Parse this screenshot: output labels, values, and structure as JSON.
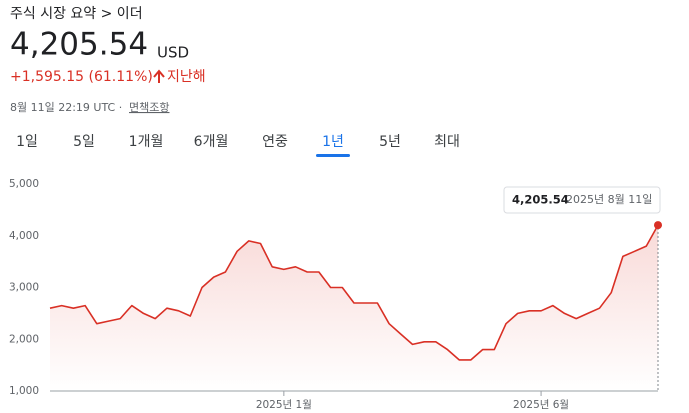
{
  "header": {
    "breadcrumb": "주식 시장 요약 > 이더",
    "price": "4,205.54",
    "currency": "USD",
    "change": "+1,595.15 (61.11%)",
    "period": "지난해",
    "timestamp": "8월 11일 22:19 UTC ·",
    "disclaimer": "면책조항"
  },
  "tabs": [
    "1일",
    "5일",
    "1개월",
    "6개월",
    "연중",
    "1년",
    "5년",
    "최대"
  ],
  "tooltip": {
    "value": "4,205.54",
    "date": "2025년 8월 11일"
  },
  "chart_data": {
    "type": "line",
    "categories": [
      null,
      null,
      null,
      null,
      null,
      null,
      null,
      null,
      null,
      null,
      null,
      null,
      null,
      null,
      null,
      null,
      null,
      null,
      null,
      null,
      "2025년 1월",
      null,
      null,
      null,
      null,
      null,
      null,
      null,
      null,
      null,
      null,
      null,
      null,
      null,
      null,
      null,
      null,
      null,
      null,
      null,
      null,
      null,
      "2025년 6월",
      null,
      null,
      null,
      null,
      null,
      null,
      null,
      null,
      null,
      null
    ],
    "series": [
      {
        "name": "이더",
        "color": "#d93025",
        "values": [
          2600,
          2650,
          2600,
          2650,
          2300,
          2350,
          2400,
          2650,
          2500,
          2400,
          2600,
          2550,
          2450,
          3000,
          3200,
          3300,
          3700,
          3900,
          3850,
          3400,
          3350,
          3400,
          3300,
          3300,
          3000,
          3000,
          2700,
          2700,
          2700,
          2300,
          2100,
          1900,
          1950,
          1950,
          1800,
          1600,
          1600,
          1800,
          1800,
          2300,
          2500,
          2550,
          2550,
          2650,
          2500,
          2400,
          2500,
          2600,
          2900,
          3600,
          3700,
          3800,
          4205.54
        ]
      }
    ],
    "ylim": [
      1000,
      5000
    ],
    "yticks": [
      {
        "value": 1000,
        "label": "1,000"
      },
      {
        "value": 2000,
        "label": "2,000"
      },
      {
        "value": 3000,
        "label": "3,000"
      },
      {
        "value": 4000,
        "label": "4,000"
      },
      {
        "value": 5000,
        "label": "5,000"
      }
    ]
  }
}
